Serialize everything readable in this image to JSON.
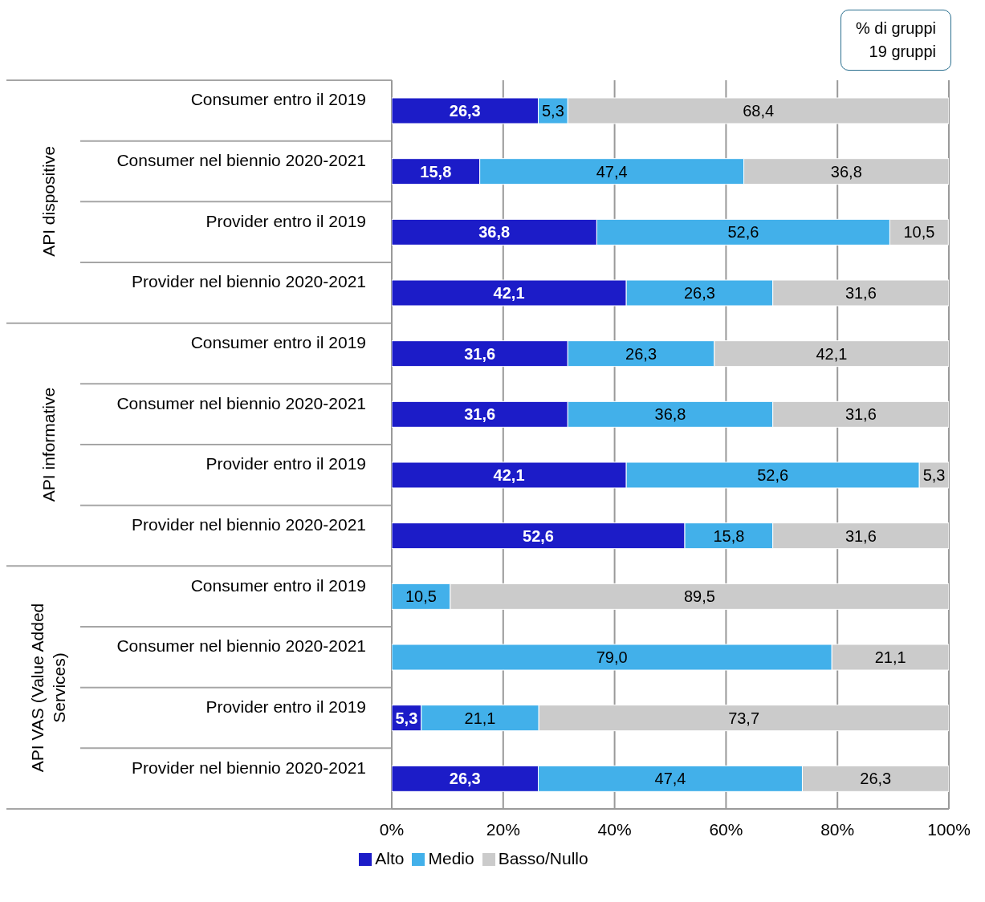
{
  "chart_data": {
    "type": "bar",
    "orientation": "horizontal",
    "stacked": true,
    "title": "% di gruppi",
    "subtitle": "19 gruppi",
    "categories": [
      "Consumer entro il 2019",
      "Consumer nel biennio 2020-2021",
      "Provider entro il 2019",
      "Provider nel biennio 2020-2021",
      "Consumer entro il 2019",
      "Consumer nel biennio 2020-2021",
      "Provider entro il 2019",
      "Provider nel biennio 2020-2021",
      "Consumer entro il 2019",
      "Consumer nel biennio 2020-2021",
      "Provider entro il 2019",
      "Provider nel biennio 2020-2021"
    ],
    "annotations": [
      "API dispositive",
      "API informative",
      "API VAS (Value Added Services)"
    ],
    "series": [
      {
        "name": "Alto",
        "color": "#1c1cc8",
        "values": [
          26.3,
          15.8,
          36.8,
          42.1,
          31.6,
          31.6,
          42.1,
          52.6,
          0,
          0,
          5.3,
          26.3
        ],
        "value_labels": [
          "26,3",
          "15,8",
          "36,8",
          "42,1",
          "31,6",
          "31,6",
          "42,1",
          "52,6",
          null,
          null,
          "5,3",
          "26,3"
        ]
      },
      {
        "name": "Medio",
        "color": "#42b0ea",
        "values": [
          5.3,
          47.4,
          52.6,
          26.3,
          26.3,
          36.8,
          52.6,
          15.8,
          10.5,
          79.0,
          21.1,
          47.4
        ],
        "value_labels": [
          "5,3",
          "47,4",
          "52,6",
          "26,3",
          "26,3",
          "36,8",
          "52,6",
          "15,8",
          "10,5",
          "79,0",
          "21,1",
          "47,4"
        ]
      },
      {
        "name": "Basso/Nullo",
        "color": "#cbcbcb",
        "values": [
          68.4,
          36.8,
          10.5,
          31.6,
          42.1,
          31.6,
          5.3,
          31.6,
          89.5,
          21.1,
          73.7,
          26.3
        ],
        "value_labels": [
          "68,4",
          "36,8",
          "10,5",
          "31,6",
          "42,1",
          "31,6",
          "5,3",
          "31,6",
          "89,5",
          "21,1",
          "73,7",
          "26,3"
        ]
      }
    ],
    "xlim": [
      0,
      100
    ],
    "xticks": [
      {
        "value": 0,
        "label": "0%"
      },
      {
        "value": 20,
        "label": "20%"
      },
      {
        "value": 40,
        "label": "40%"
      },
      {
        "value": 60,
        "label": "60%"
      },
      {
        "value": 80,
        "label": "80%"
      },
      {
        "value": 100,
        "label": "100%"
      }
    ],
    "grid": "x",
    "legend": "bottom"
  }
}
